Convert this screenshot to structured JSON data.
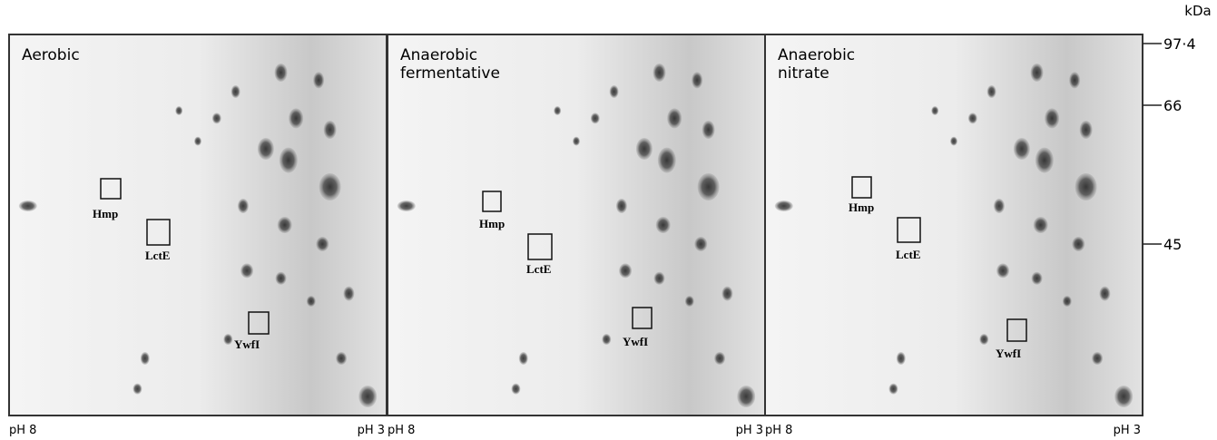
{
  "figure": {
    "molecular_weight": {
      "unit": "kDa",
      "markers": [
        "97·4",
        "66",
        "45"
      ]
    },
    "panels": [
      {
        "title_lines": [
          "Aerobic"
        ],
        "ph_left": "pH 8",
        "ph_right": "pH 3",
        "proteins": [
          "Hmp",
          "LctE",
          "YwfI"
        ]
      },
      {
        "title_lines": [
          "Anaerobic",
          "fermentative"
        ],
        "ph_left": "pH 8",
        "ph_right": "pH 3",
        "proteins": [
          "Hmp",
          "LctE",
          "YwfI"
        ]
      },
      {
        "title_lines": [
          "Anaerobic",
          "nitrate"
        ],
        "ph_left": "pH 8",
        "ph_right": "pH 3",
        "proteins": [
          "Hmp",
          "LctE",
          "YwfI"
        ]
      }
    ]
  }
}
